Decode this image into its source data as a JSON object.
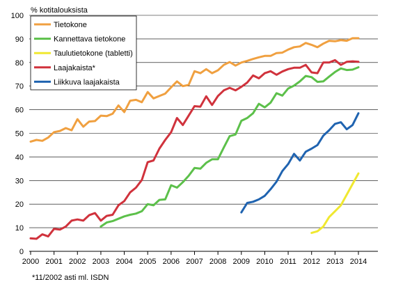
{
  "chart_data": {
    "type": "line",
    "ylabel": "% kotitalouksista",
    "footnote": "*11/2002 asti ml. ISDN",
    "ylim": [
      0,
      100
    ],
    "xlim": [
      2000,
      2014.5
    ],
    "yticks": [
      0,
      10,
      20,
      30,
      40,
      50,
      60,
      70,
      80,
      90,
      100
    ],
    "xticks": [
      2000,
      2001,
      2002,
      2003,
      2004,
      2005,
      2006,
      2007,
      2008,
      2009,
      2010,
      2011,
      2012,
      2013,
      2014
    ],
    "grid": "horizontal",
    "legend_position": "top-left",
    "series": [
      {
        "name": "Tietokone",
        "color": "#f0a040",
        "points": [
          [
            2000.0,
            46.5
          ],
          [
            2000.25,
            47.2
          ],
          [
            2000.5,
            46.8
          ],
          [
            2000.75,
            48.2
          ],
          [
            2001.0,
            50.5
          ],
          [
            2001.25,
            51.0
          ],
          [
            2001.5,
            52.2
          ],
          [
            2001.75,
            51.3
          ],
          [
            2002.0,
            56.0
          ],
          [
            2002.25,
            52.8
          ],
          [
            2002.5,
            55.0
          ],
          [
            2002.75,
            55.2
          ],
          [
            2003.0,
            57.5
          ],
          [
            2003.25,
            57.3
          ],
          [
            2003.5,
            58.3
          ],
          [
            2003.75,
            61.8
          ],
          [
            2004.0,
            59.0
          ],
          [
            2004.25,
            63.8
          ],
          [
            2004.5,
            64.2
          ],
          [
            2004.75,
            63.2
          ],
          [
            2005.0,
            67.5
          ],
          [
            2005.25,
            64.8
          ],
          [
            2005.5,
            65.8
          ],
          [
            2005.75,
            66.8
          ],
          [
            2006.0,
            69.5
          ],
          [
            2006.25,
            72.0
          ],
          [
            2006.5,
            70.0
          ],
          [
            2006.75,
            70.5
          ],
          [
            2007.0,
            76.3
          ],
          [
            2007.25,
            75.5
          ],
          [
            2007.5,
            77.2
          ],
          [
            2007.75,
            75.5
          ],
          [
            2008.0,
            76.7
          ],
          [
            2008.25,
            79.0
          ],
          [
            2008.5,
            80.2
          ],
          [
            2008.75,
            78.7
          ],
          [
            2009.0,
            80.0
          ],
          [
            2009.25,
            80.7
          ],
          [
            2009.5,
            81.5
          ],
          [
            2009.75,
            82.2
          ],
          [
            2010.0,
            82.8
          ],
          [
            2010.25,
            82.8
          ],
          [
            2010.5,
            84.0
          ],
          [
            2010.75,
            84.2
          ],
          [
            2011.0,
            85.5
          ],
          [
            2011.25,
            86.5
          ],
          [
            2011.5,
            86.8
          ],
          [
            2011.75,
            88.3
          ],
          [
            2012.0,
            87.5
          ],
          [
            2012.25,
            86.5
          ],
          [
            2012.5,
            88.0
          ],
          [
            2012.75,
            89.2
          ],
          [
            2013.0,
            89.0
          ],
          [
            2013.25,
            89.5
          ],
          [
            2013.5,
            89.2
          ],
          [
            2013.75,
            90.3
          ],
          [
            2014.0,
            90.3
          ]
        ]
      },
      {
        "name": "Kannettava tietokone",
        "color": "#5cc04a",
        "points": [
          [
            2003.0,
            10.5
          ],
          [
            2003.25,
            12.2
          ],
          [
            2003.5,
            12.8
          ],
          [
            2003.75,
            13.8
          ],
          [
            2004.0,
            14.8
          ],
          [
            2004.25,
            15.5
          ],
          [
            2004.5,
            16.0
          ],
          [
            2004.75,
            17.0
          ],
          [
            2005.0,
            20.0
          ],
          [
            2005.25,
            19.5
          ],
          [
            2005.5,
            21.8
          ],
          [
            2005.75,
            22.0
          ],
          [
            2006.0,
            28.0
          ],
          [
            2006.25,
            27.0
          ],
          [
            2006.5,
            29.3
          ],
          [
            2006.75,
            32.0
          ],
          [
            2007.0,
            35.3
          ],
          [
            2007.25,
            35.0
          ],
          [
            2007.5,
            37.5
          ],
          [
            2007.75,
            39.0
          ],
          [
            2008.0,
            39.0
          ],
          [
            2008.25,
            44.0
          ],
          [
            2008.5,
            48.8
          ],
          [
            2008.75,
            49.5
          ],
          [
            2009.0,
            55.3
          ],
          [
            2009.25,
            56.5
          ],
          [
            2009.5,
            58.5
          ],
          [
            2009.75,
            62.5
          ],
          [
            2010.0,
            61.0
          ],
          [
            2010.25,
            63.0
          ],
          [
            2010.5,
            67.0
          ],
          [
            2010.75,
            66.0
          ],
          [
            2011.0,
            69.0
          ],
          [
            2011.25,
            70.2
          ],
          [
            2011.5,
            72.0
          ],
          [
            2011.75,
            74.3
          ],
          [
            2012.0,
            73.8
          ],
          [
            2012.25,
            71.8
          ],
          [
            2012.5,
            72.0
          ],
          [
            2012.75,
            74.0
          ],
          [
            2013.0,
            76.0
          ],
          [
            2013.25,
            77.5
          ],
          [
            2013.5,
            76.8
          ],
          [
            2013.75,
            77.0
          ],
          [
            2014.0,
            78.0
          ]
        ]
      },
      {
        "name": "Taulutietokone (tabletti)",
        "color": "#f0e830",
        "points": [
          [
            2012.0,
            7.8
          ],
          [
            2012.25,
            8.5
          ],
          [
            2012.5,
            10.5
          ],
          [
            2012.75,
            14.5
          ],
          [
            2013.0,
            17.0
          ],
          [
            2013.25,
            19.5
          ],
          [
            2013.5,
            24.0
          ],
          [
            2013.75,
            28.5
          ],
          [
            2014.0,
            33.0
          ]
        ]
      },
      {
        "name": "Laajakaista*",
        "color": "#d0323c",
        "points": [
          [
            2000.0,
            5.5
          ],
          [
            2000.25,
            5.3
          ],
          [
            2000.5,
            7.2
          ],
          [
            2000.75,
            6.3
          ],
          [
            2001.0,
            9.5
          ],
          [
            2001.25,
            9.2
          ],
          [
            2001.5,
            10.5
          ],
          [
            2001.75,
            13.0
          ],
          [
            2002.0,
            13.5
          ],
          [
            2002.25,
            13.0
          ],
          [
            2002.5,
            15.3
          ],
          [
            2002.75,
            16.2
          ],
          [
            2003.0,
            13.0
          ],
          [
            2003.25,
            15.0
          ],
          [
            2003.5,
            15.5
          ],
          [
            2003.75,
            19.5
          ],
          [
            2004.0,
            21.3
          ],
          [
            2004.25,
            25.0
          ],
          [
            2004.5,
            27.0
          ],
          [
            2004.75,
            30.2
          ],
          [
            2005.0,
            37.8
          ],
          [
            2005.25,
            38.5
          ],
          [
            2005.5,
            43.5
          ],
          [
            2005.75,
            47.2
          ],
          [
            2006.0,
            50.5
          ],
          [
            2006.25,
            56.5
          ],
          [
            2006.5,
            53.5
          ],
          [
            2006.75,
            57.5
          ],
          [
            2007.0,
            61.5
          ],
          [
            2007.25,
            61.3
          ],
          [
            2007.5,
            65.7
          ],
          [
            2007.75,
            62.0
          ],
          [
            2008.0,
            65.8
          ],
          [
            2008.25,
            68.2
          ],
          [
            2008.5,
            69.3
          ],
          [
            2008.75,
            68.2
          ],
          [
            2009.0,
            69.7
          ],
          [
            2009.25,
            71.5
          ],
          [
            2009.5,
            74.5
          ],
          [
            2009.75,
            73.3
          ],
          [
            2010.0,
            75.5
          ],
          [
            2010.25,
            76.3
          ],
          [
            2010.5,
            74.8
          ],
          [
            2010.75,
            76.2
          ],
          [
            2011.0,
            77.2
          ],
          [
            2011.25,
            77.8
          ],
          [
            2011.5,
            77.8
          ],
          [
            2011.75,
            79.0
          ],
          [
            2012.0,
            75.8
          ],
          [
            2012.25,
            75.5
          ],
          [
            2012.5,
            80.0
          ],
          [
            2012.75,
            80.0
          ],
          [
            2013.0,
            81.0
          ],
          [
            2013.25,
            79.0
          ],
          [
            2013.5,
            80.3
          ],
          [
            2013.75,
            80.5
          ],
          [
            2014.0,
            80.3
          ]
        ]
      },
      {
        "name": "Liikkuva laajakaista",
        "color": "#1f63b0",
        "points": [
          [
            2009.0,
            16.5
          ],
          [
            2009.25,
            20.5
          ],
          [
            2009.5,
            21.0
          ],
          [
            2009.75,
            22.0
          ],
          [
            2010.0,
            23.5
          ],
          [
            2010.25,
            26.3
          ],
          [
            2010.5,
            29.5
          ],
          [
            2010.75,
            34.0
          ],
          [
            2011.0,
            37.0
          ],
          [
            2011.25,
            41.3
          ],
          [
            2011.5,
            38.5
          ],
          [
            2011.75,
            42.2
          ],
          [
            2012.0,
            43.5
          ],
          [
            2012.25,
            45.0
          ],
          [
            2012.5,
            49.0
          ],
          [
            2012.75,
            51.3
          ],
          [
            2013.0,
            54.0
          ],
          [
            2013.25,
            54.7
          ],
          [
            2013.5,
            51.7
          ],
          [
            2013.75,
            53.5
          ],
          [
            2014.0,
            58.5
          ]
        ]
      }
    ]
  }
}
